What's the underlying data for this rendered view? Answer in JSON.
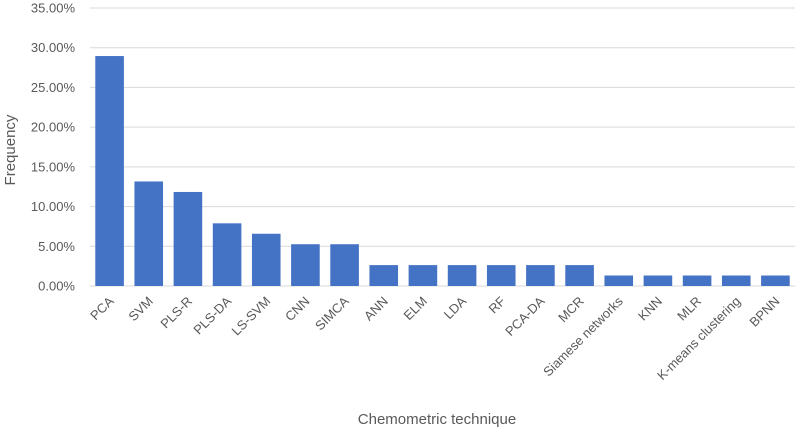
{
  "chart_data": {
    "type": "bar",
    "categories": [
      "PCA",
      "SVM",
      "PLS-R",
      "PLS-DA",
      "LS-SVM",
      "CNN",
      "SIMCA",
      "ANN",
      "ELM",
      "LDA",
      "RF",
      "PCA-DA",
      "MCR",
      "Siamese networks",
      "KNN",
      "MLR",
      "K-means clustering",
      "BPNN"
    ],
    "values": [
      28.95,
      13.16,
      11.84,
      7.89,
      6.58,
      5.26,
      5.26,
      2.63,
      2.63,
      2.63,
      2.63,
      2.63,
      2.63,
      1.32,
      1.32,
      1.32,
      1.32,
      1.32
    ],
    "title": "",
    "xlabel": "Chemometric technique",
    "ylabel": "Frequency",
    "ylim": [
      0,
      35
    ],
    "yticks": [
      "0.00%",
      "5.00%",
      "10.00%",
      "15.00%",
      "20.00%",
      "25.00%",
      "30.00%",
      "35.00%"
    ],
    "grid": true,
    "legend": "none",
    "bar_color": "#4472c4"
  }
}
